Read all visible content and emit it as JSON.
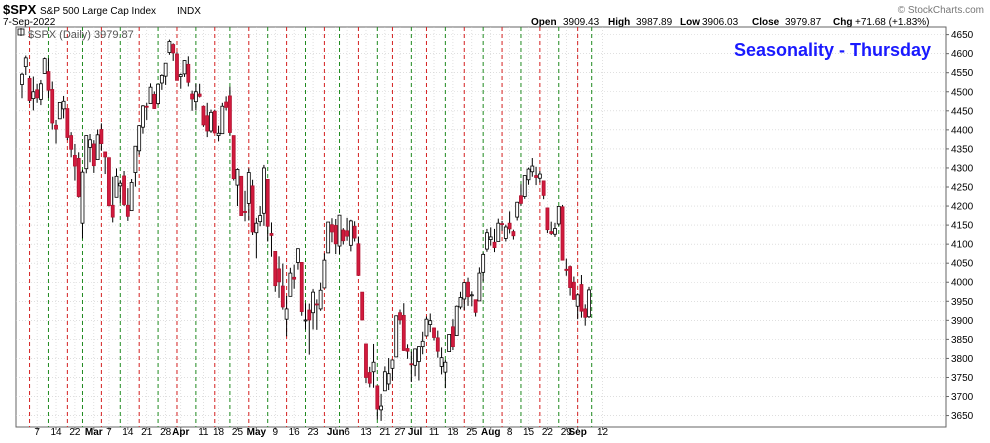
{
  "header": {
    "symbol": "$SPX",
    "name": "S&P 500 Large Cap Index",
    "exchange": "INDX",
    "date": "7-Sep-2022",
    "open_label": "Open",
    "open": "3909.43",
    "high_label": "High",
    "high": "3987.89",
    "low_label": "Low",
    "low": "3906.03",
    "close_label": "Close",
    "close": "3979.87",
    "chg_label": "Chg",
    "chg": "+71.68 (+1.83%)",
    "watermark": "© StockCharts.com"
  },
  "legend": {
    "text": "$SPX (Daily) 3979.87"
  },
  "colors": {
    "up_candle_fill": "#ffffff",
    "down_candle_fill": "#d21a3e",
    "candle_outline": "#000000",
    "red_line": "#d42020",
    "green_line": "#1f8a1f",
    "grid": "#cccccc",
    "title_color": "#1a1aff"
  },
  "chart_data": {
    "type": "candlestick",
    "title": "Seasonality - Thursday",
    "ylim": [
      3620,
      4670
    ],
    "y_ticks": [
      3650,
      3700,
      3750,
      3800,
      3850,
      3900,
      3950,
      4000,
      4050,
      4100,
      4150,
      4200,
      4250,
      4300,
      4350,
      4400,
      4450,
      4500,
      4550,
      4600,
      4650
    ],
    "x_ticks": [
      "7",
      "14",
      "22",
      "Mar",
      "7",
      "14",
      "21",
      "28",
      "Apr",
      "11",
      "18",
      "25",
      "May",
      "9",
      "16",
      "23",
      "Jun",
      "6",
      "13",
      "21",
      "27",
      "Jul",
      "11",
      "18",
      "25",
      "Aug",
      "8",
      "15",
      "22",
      "29",
      "Sep",
      "12"
    ],
    "x_tick_bold": [
      false,
      false,
      false,
      true,
      false,
      false,
      false,
      false,
      true,
      false,
      false,
      false,
      true,
      false,
      false,
      false,
      true,
      false,
      false,
      false,
      false,
      true,
      false,
      false,
      false,
      true,
      false,
      false,
      false,
      false,
      true,
      false
    ],
    "x_tick_dates": [
      "2022-02-07",
      "2022-02-14",
      "2022-02-22",
      "2022-03-01",
      "2022-03-07",
      "2022-03-14",
      "2022-03-21",
      "2022-03-28",
      "2022-04-01",
      "2022-04-11",
      "2022-04-18",
      "2022-04-25",
      "2022-05-02",
      "2022-05-09",
      "2022-05-16",
      "2022-05-23",
      "2022-06-01",
      "2022-06-06",
      "2022-06-13",
      "2022-06-21",
      "2022-06-27",
      "2022-07-01",
      "2022-07-11",
      "2022-07-18",
      "2022-07-25",
      "2022-08-01",
      "2022-08-08",
      "2022-08-15",
      "2022-08-22",
      "2022-08-29",
      "2022-09-01",
      "2022-09-12"
    ],
    "thursday_up_dates": [
      "2022-02-10",
      "2022-02-24",
      "2022-03-10",
      "2022-03-24",
      "2022-04-07",
      "2022-04-21",
      "2022-05-05",
      "2022-05-19",
      "2022-06-02",
      "2022-06-16",
      "2022-06-30",
      "2022-07-14",
      "2022-07-28",
      "2022-08-11",
      "2022-08-25",
      "2022-09-08"
    ],
    "thursday_down_dates": [
      "2022-02-03",
      "2022-02-17",
      "2022-03-03",
      "2022-03-17",
      "2022-03-31",
      "2022-04-14",
      "2022-04-28",
      "2022-05-12",
      "2022-05-26",
      "2022-06-09",
      "2022-06-23",
      "2022-07-07",
      "2022-07-21",
      "2022-08-04",
      "2022-08-18",
      "2022-09-01"
    ],
    "ohlc": [
      [
        "2022-02-01",
        4519,
        4550,
        4483,
        4546
      ],
      [
        "2022-02-02",
        4566,
        4595,
        4544,
        4589
      ],
      [
        "2022-02-03",
        4535,
        4542,
        4470,
        4477
      ],
      [
        "2022-02-04",
        4482,
        4540,
        4451,
        4500
      ],
      [
        "2022-02-07",
        4505,
        4521,
        4471,
        4484
      ],
      [
        "2022-02-08",
        4480,
        4531,
        4465,
        4521
      ],
      [
        "2022-02-09",
        4548,
        4590,
        4547,
        4587
      ],
      [
        "2022-02-10",
        4553,
        4588,
        4484,
        4504
      ],
      [
        "2022-02-11",
        4506,
        4527,
        4401,
        4418
      ],
      [
        "2022-02-14",
        4412,
        4426,
        4364,
        4402
      ],
      [
        "2022-02-15",
        4429,
        4472,
        4429,
        4472
      ],
      [
        "2022-02-16",
        4455,
        4489,
        4430,
        4475
      ],
      [
        "2022-02-17",
        4456,
        4456,
        4373,
        4380
      ],
      [
        "2022-02-18",
        4385,
        4394,
        4328,
        4349
      ],
      [
        "2022-02-22",
        4333,
        4363,
        4267,
        4305
      ],
      [
        "2022-02-23",
        4325,
        4341,
        4222,
        4225
      ],
      [
        "2022-02-24",
        4155,
        4295,
        4115,
        4289
      ],
      [
        "2022-02-25",
        4298,
        4385,
        4286,
        4385
      ],
      [
        "2022-02-28",
        4354,
        4389,
        4315,
        4374
      ],
      [
        "2022-03-01",
        4363,
        4373,
        4287,
        4306
      ],
      [
        "2022-03-02",
        4322,
        4401,
        4322,
        4387
      ],
      [
        "2022-03-03",
        4401,
        4417,
        4345,
        4364
      ],
      [
        "2022-03-04",
        4342,
        4342,
        4284,
        4329
      ],
      [
        "2022-03-07",
        4327,
        4327,
        4199,
        4201
      ],
      [
        "2022-03-08",
        4202,
        4277,
        4157,
        4171
      ],
      [
        "2022-03-09",
        4223,
        4299,
        4223,
        4278
      ],
      [
        "2022-03-10",
        4253,
        4268,
        4209,
        4260
      ],
      [
        "2022-03-11",
        4279,
        4292,
        4200,
        4204
      ],
      [
        "2022-03-14",
        4202,
        4247,
        4161,
        4173
      ],
      [
        "2022-03-15",
        4188,
        4271,
        4187,
        4262
      ],
      [
        "2022-03-16",
        4288,
        4357,
        4251,
        4357
      ],
      [
        "2022-03-17",
        4345,
        4412,
        4335,
        4411
      ],
      [
        "2022-03-18",
        4407,
        4465,
        4390,
        4463
      ],
      [
        "2022-03-21",
        4462,
        4471,
        4426,
        4461
      ],
      [
        "2022-03-22",
        4469,
        4522,
        4469,
        4512
      ],
      [
        "2022-03-23",
        4493,
        4501,
        4455,
        4456
      ],
      [
        "2022-03-24",
        4469,
        4521,
        4465,
        4520
      ],
      [
        "2022-03-25",
        4523,
        4546,
        4505,
        4543
      ],
      [
        "2022-03-28",
        4541,
        4575,
        4518,
        4575
      ],
      [
        "2022-03-29",
        4603,
        4637,
        4597,
        4632
      ],
      [
        "2022-03-30",
        4624,
        4627,
        4581,
        4602
      ],
      [
        "2022-03-31",
        4599,
        4604,
        4530,
        4530
      ],
      [
        "2022-04-01",
        4540,
        4548,
        4508,
        4545
      ],
      [
        "2022-04-04",
        4547,
        4583,
        4539,
        4582
      ],
      [
        "2022-04-05",
        4572,
        4593,
        4514,
        4525
      ],
      [
        "2022-04-06",
        4494,
        4503,
        4450,
        4481
      ],
      [
        "2022-04-07",
        4474,
        4521,
        4451,
        4500
      ],
      [
        "2022-04-08",
        4494,
        4521,
        4485,
        4488
      ],
      [
        "2022-04-11",
        4462,
        4464,
        4408,
        4413
      ],
      [
        "2022-04-12",
        4437,
        4471,
        4381,
        4397
      ],
      [
        "2022-04-13",
        4397,
        4453,
        4392,
        4446
      ],
      [
        "2022-04-14",
        4449,
        4453,
        4392,
        4392
      ],
      [
        "2022-04-18",
        4385,
        4411,
        4370,
        4391
      ],
      [
        "2022-04-19",
        4390,
        4471,
        4390,
        4462
      ],
      [
        "2022-04-20",
        4473,
        4488,
        4451,
        4459
      ],
      [
        "2022-04-21",
        4489,
        4513,
        4385,
        4393
      ],
      [
        "2022-04-22",
        4385,
        4385,
        4267,
        4272
      ],
      [
        "2022-04-25",
        4255,
        4299,
        4200,
        4296
      ],
      [
        "2022-04-26",
        4278,
        4278,
        4175,
        4175
      ],
      [
        "2022-04-27",
        4186,
        4240,
        4160,
        4183
      ],
      [
        "2022-04-28",
        4207,
        4299,
        4162,
        4288
      ],
      [
        "2022-04-29",
        4253,
        4269,
        4124,
        4132
      ],
      [
        "2022-05-02",
        4130,
        4169,
        4063,
        4155
      ],
      [
        "2022-05-03",
        4159,
        4200,
        4147,
        4175
      ],
      [
        "2022-05-04",
        4181,
        4308,
        4148,
        4300
      ],
      [
        "2022-05-05",
        4270,
        4270,
        4107,
        4147
      ],
      [
        "2022-05-06",
        4128,
        4157,
        4067,
        4123
      ],
      [
        "2022-05-09",
        4081,
        4082,
        3975,
        3991
      ],
      [
        "2022-05-10",
        4035,
        4068,
        3959,
        4001
      ],
      [
        "2022-05-11",
        3990,
        4049,
        3928,
        3935
      ],
      [
        "2022-05-12",
        3903,
        3964,
        3858,
        3930
      ],
      [
        "2022-05-13",
        3963,
        4038,
        3963,
        4024
      ],
      [
        "2022-05-16",
        4013,
        4046,
        3983,
        4008
      ],
      [
        "2022-05-17",
        4052,
        4089,
        4033,
        4088
      ],
      [
        "2022-05-18",
        4052,
        4052,
        3912,
        3923
      ],
      [
        "2022-05-19",
        3899,
        3945,
        3876,
        3901
      ],
      [
        "2022-05-20",
        3927,
        3944,
        3810,
        3901
      ],
      [
        "2022-05-23",
        3920,
        3982,
        3876,
        3974
      ],
      [
        "2022-05-24",
        3943,
        3955,
        3875,
        3941
      ],
      [
        "2022-05-25",
        3930,
        3999,
        3925,
        3979
      ],
      [
        "2022-05-26",
        3985,
        4076,
        3985,
        4058
      ],
      [
        "2022-05-27",
        4077,
        4158,
        4077,
        4158
      ],
      [
        "2022-05-31",
        4151,
        4168,
        4105,
        4132
      ],
      [
        "2022-06-01",
        4149,
        4166,
        4074,
        4101
      ],
      [
        "2022-06-02",
        4095,
        4177,
        4074,
        4176
      ],
      [
        "2022-06-03",
        4137,
        4142,
        4099,
        4109
      ],
      [
        "2022-06-06",
        4135,
        4169,
        4109,
        4121
      ],
      [
        "2022-06-07",
        4097,
        4164,
        4081,
        4161
      ],
      [
        "2022-06-08",
        4147,
        4160,
        4107,
        4116
      ],
      [
        "2022-06-09",
        4101,
        4120,
        4017,
        4018
      ],
      [
        "2022-06-10",
        3974,
        3974,
        3900,
        3901
      ],
      [
        "2022-06-13",
        3838,
        3838,
        3735,
        3750
      ],
      [
        "2022-06-14",
        3763,
        3778,
        3724,
        3735
      ],
      [
        "2022-06-15",
        3765,
        3838,
        3723,
        3790
      ],
      [
        "2022-06-16",
        3728,
        3728,
        3640,
        3667
      ],
      [
        "2022-06-17",
        3665,
        3707,
        3636,
        3675
      ],
      [
        "2022-06-21",
        3715,
        3779,
        3715,
        3765
      ],
      [
        "2022-06-22",
        3733,
        3801,
        3717,
        3760
      ],
      [
        "2022-06-23",
        3774,
        3796,
        3742,
        3796
      ],
      [
        "2022-06-24",
        3804,
        3912,
        3804,
        3912
      ],
      [
        "2022-06-27",
        3920,
        3928,
        3889,
        3901
      ],
      [
        "2022-06-28",
        3913,
        3945,
        3820,
        3821
      ],
      [
        "2022-06-29",
        3826,
        3837,
        3799,
        3819
      ],
      [
        "2022-06-30",
        3786,
        3818,
        3738,
        3785
      ],
      [
        "2022-07-01",
        3782,
        3826,
        3753,
        3825
      ],
      [
        "2022-07-05",
        3792,
        3832,
        3742,
        3831
      ],
      [
        "2022-07-06",
        3831,
        3870,
        3811,
        3845
      ],
      [
        "2022-07-07",
        3859,
        3910,
        3858,
        3903
      ],
      [
        "2022-07-08",
        3889,
        3918,
        3869,
        3899
      ],
      [
        "2022-07-11",
        3880,
        3880,
        3847,
        3855
      ],
      [
        "2022-07-12",
        3854,
        3873,
        3802,
        3819
      ],
      [
        "2022-07-13",
        3779,
        3829,
        3758,
        3802
      ],
      [
        "2022-07-14",
        3764,
        3796,
        3722,
        3790
      ],
      [
        "2022-07-15",
        3818,
        3864,
        3818,
        3863
      ],
      [
        "2022-07-18",
        3883,
        3903,
        3822,
        3831
      ],
      [
        "2022-07-19",
        3860,
        3939,
        3860,
        3937
      ],
      [
        "2022-07-20",
        3935,
        3975,
        3929,
        3960
      ],
      [
        "2022-07-21",
        3956,
        3999,
        3927,
        3999
      ],
      [
        "2022-07-22",
        4000,
        4012,
        3938,
        3962
      ],
      [
        "2022-07-25",
        3965,
        3976,
        3937,
        3967
      ],
      [
        "2022-07-26",
        3954,
        3954,
        3910,
        3921
      ],
      [
        "2022-07-27",
        3951,
        4039,
        3951,
        4024
      ],
      [
        "2022-07-28",
        4026,
        4078,
        4002,
        4073
      ],
      [
        "2022-07-29",
        4087,
        4140,
        4080,
        4130
      ],
      [
        "2022-08-01",
        4112,
        4144,
        4096,
        4119
      ],
      [
        "2022-08-02",
        4105,
        4140,
        4079,
        4091
      ],
      [
        "2022-08-03",
        4107,
        4167,
        4107,
        4155
      ],
      [
        "2022-08-04",
        4154,
        4161,
        4135,
        4152
      ],
      [
        "2022-08-05",
        4115,
        4151,
        4107,
        4145
      ],
      [
        "2022-08-08",
        4155,
        4186,
        4128,
        4140
      ],
      [
        "2022-08-09",
        4133,
        4138,
        4112,
        4122
      ],
      [
        "2022-08-10",
        4171,
        4211,
        4162,
        4210
      ],
      [
        "2022-08-11",
        4227,
        4257,
        4201,
        4207
      ],
      [
        "2022-08-12",
        4225,
        4280,
        4219,
        4280
      ],
      [
        "2022-08-15",
        4269,
        4301,
        4256,
        4297
      ],
      [
        "2022-08-16",
        4290,
        4326,
        4277,
        4305
      ],
      [
        "2022-08-17",
        4280,
        4303,
        4255,
        4275
      ],
      [
        "2022-08-18",
        4273,
        4292,
        4262,
        4284
      ],
      [
        "2022-08-19",
        4266,
        4266,
        4218,
        4228
      ],
      [
        "2022-08-22",
        4195,
        4195,
        4129,
        4138
      ],
      [
        "2022-08-23",
        4133,
        4159,
        4124,
        4128
      ],
      [
        "2022-08-24",
        4126,
        4156,
        4119,
        4141
      ],
      [
        "2022-08-25",
        4153,
        4200,
        4148,
        4199
      ],
      [
        "2022-08-26",
        4198,
        4203,
        4057,
        4058
      ],
      [
        "2022-08-29",
        4034,
        4062,
        4017,
        4031
      ],
      [
        "2022-08-30",
        4041,
        4044,
        3965,
        3986
      ],
      [
        "2022-08-31",
        4000,
        4015,
        3954,
        3955
      ],
      [
        "2022-09-01",
        3937,
        3970,
        3903,
        3967
      ],
      [
        "2022-09-02",
        3994,
        4019,
        3907,
        3924
      ],
      [
        "2022-09-06",
        3930,
        3942,
        3886,
        3908
      ],
      [
        "2022-09-07",
        3909.43,
        3987.89,
        3906.03,
        3979.87
      ]
    ]
  }
}
